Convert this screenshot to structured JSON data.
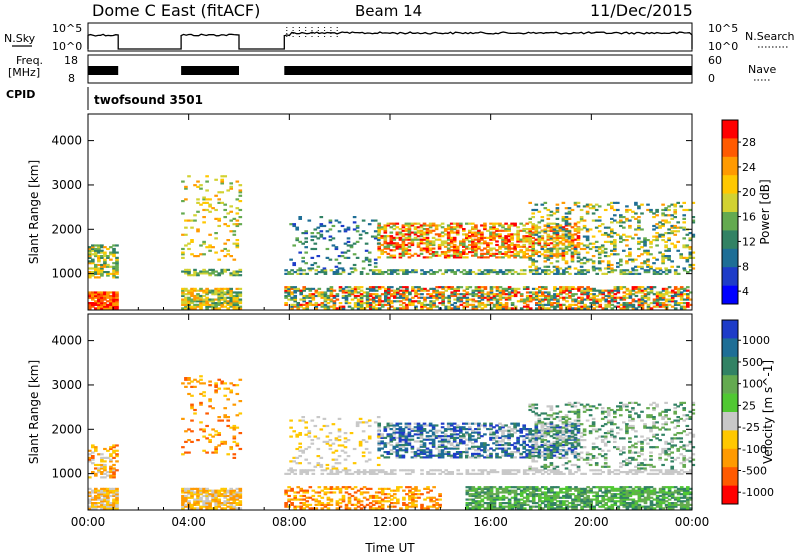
{
  "header": {
    "station": "Dome C East (fitACF)",
    "beam": "Beam 14",
    "date": "11/Dec/2015"
  },
  "strips": {
    "nsky_label": "N.Sky",
    "nsky_ticks": [
      "10^5",
      "10^0"
    ],
    "nsearch_label": "N.Search",
    "nsearch_ticks": [
      "10^5",
      "10^0"
    ],
    "freq_label": "Freq.",
    "freq_unit": "[MHz]",
    "freq_ticks": [
      "18",
      "8"
    ],
    "nave_label": "Nave",
    "nave_ticks": [
      "60",
      "0"
    ],
    "cpid_label": "CPID",
    "cpid_value": "twofsound 3501"
  },
  "chart_data": [
    {
      "type": "heatmap",
      "name": "power-panel",
      "xlabel": "Time UT",
      "ylabel": "Slant Range [km]",
      "x_ticks": [
        "00:00",
        "04:00",
        "08:00",
        "12:00",
        "16:00",
        "20:00",
        "00:00"
      ],
      "x_range_hours": [
        0,
        24
      ],
      "y_ticks": [
        1000,
        2000,
        3000,
        4000
      ],
      "ylim": [
        180,
        4600
      ],
      "colorbar": {
        "label": "Power [dB]",
        "ticks": [
          "28",
          "24",
          "20",
          "16",
          "12",
          "8",
          "4"
        ],
        "colors": [
          "#ff0000",
          "#ff5a00",
          "#ff9a00",
          "#ffc800",
          "#d2d232",
          "#64aa50",
          "#328264",
          "#1e6e96",
          "#1e3cc8",
          "#0000ff"
        ]
      },
      "data_windows_hours": [
        [
          0.0,
          1.2
        ],
        [
          3.7,
          6.0
        ],
        [
          7.8,
          24.0
        ]
      ],
      "regions": [
        {
          "t": [
            0.0,
            1.2
          ],
          "r": [
            200,
            600
          ],
          "c": [
            0,
            1,
            2
          ],
          "d": 0.9
        },
        {
          "t": [
            0.0,
            1.2
          ],
          "r": [
            900,
            1650
          ],
          "c": [
            2,
            3,
            4,
            5,
            6
          ],
          "d": 0.6
        },
        {
          "t": [
            3.7,
            6.0
          ],
          "r": [
            200,
            650
          ],
          "c": [
            2,
            3,
            4,
            5,
            6
          ],
          "d": 0.75
        },
        {
          "t": [
            3.7,
            6.0
          ],
          "r": [
            950,
            1100
          ],
          "c": [
            4,
            5,
            6
          ],
          "d": 0.6
        },
        {
          "t": [
            3.7,
            6.0
          ],
          "r": [
            1300,
            3200
          ],
          "c": [
            2,
            3,
            4,
            5
          ],
          "d": 0.12
        },
        {
          "t": [
            7.8,
            24.0
          ],
          "r": [
            200,
            700
          ],
          "c": [
            0,
            1,
            2,
            3,
            4,
            5,
            6,
            7
          ],
          "d": 0.6
        },
        {
          "t": [
            7.8,
            24.0
          ],
          "r": [
            980,
            1080
          ],
          "c": [
            4,
            5,
            6,
            7
          ],
          "d": 0.5
        },
        {
          "t": [
            11.5,
            19.5
          ],
          "r": [
            1350,
            2150
          ],
          "c": [
            0,
            1,
            2,
            3,
            4,
            5
          ],
          "d": 0.55
        },
        {
          "t": [
            17.5,
            24.0
          ],
          "r": [
            1100,
            2600
          ],
          "c": [
            2,
            3,
            4,
            5,
            6,
            7
          ],
          "d": 0.25
        },
        {
          "t": [
            8.0,
            11.5
          ],
          "r": [
            1100,
            2300
          ],
          "c": [
            5,
            6,
            7,
            8
          ],
          "d": 0.15
        }
      ]
    },
    {
      "type": "heatmap",
      "name": "velocity-panel",
      "xlabel": "Time UT",
      "ylabel": "Slant Range [km]",
      "x_ticks": [
        "00:00",
        "04:00",
        "08:00",
        "12:00",
        "16:00",
        "20:00",
        "00:00"
      ],
      "x_range_hours": [
        0,
        24
      ],
      "y_ticks": [
        1000,
        2000,
        3000,
        4000
      ],
      "ylim": [
        180,
        4600
      ],
      "colorbar": {
        "label": "Velocity [m s^-1]",
        "ticks": [
          "1000",
          "500",
          "100",
          "25",
          "-25",
          "-100",
          "-500",
          "-1000"
        ],
        "colors": [
          "#1e3cc8",
          "#1e6e96",
          "#328264",
          "#64aa50",
          "#50c832",
          "#c8c8c8",
          "#ffc800",
          "#ff9a00",
          "#ff5a00",
          "#ff0000"
        ]
      },
      "data_windows_hours": [
        [
          0.0,
          1.2
        ],
        [
          3.7,
          6.0
        ],
        [
          7.8,
          24.0
        ]
      ],
      "regions": [
        {
          "t": [
            0.0,
            1.2
          ],
          "r": [
            200,
            650
          ],
          "c": [
            5,
            6,
            7
          ],
          "d": 0.85
        },
        {
          "t": [
            0.0,
            1.2
          ],
          "r": [
            900,
            1650
          ],
          "c": [
            5,
            6,
            7,
            8
          ],
          "d": 0.45
        },
        {
          "t": [
            3.7,
            6.0
          ],
          "r": [
            200,
            650
          ],
          "c": [
            6,
            7,
            5
          ],
          "d": 0.8
        },
        {
          "t": [
            3.7,
            6.0
          ],
          "r": [
            1300,
            3200
          ],
          "c": [
            6,
            7,
            8
          ],
          "d": 0.12
        },
        {
          "t": [
            7.8,
            14.0
          ],
          "r": [
            200,
            700
          ],
          "c": [
            6,
            7,
            8
          ],
          "d": 0.4
        },
        {
          "t": [
            15.0,
            24.0
          ],
          "r": [
            200,
            700
          ],
          "c": [
            2,
            3,
            4
          ],
          "d": 0.7
        },
        {
          "t": [
            7.8,
            24.0
          ],
          "r": [
            980,
            1080
          ],
          "c": [
            5
          ],
          "d": 0.55
        },
        {
          "t": [
            11.5,
            19.5
          ],
          "r": [
            1350,
            2150
          ],
          "c": [
            0,
            1,
            2,
            5
          ],
          "d": 0.55
        },
        {
          "t": [
            17.5,
            24.0
          ],
          "r": [
            1100,
            2600
          ],
          "c": [
            2,
            3,
            5
          ],
          "d": 0.25
        },
        {
          "t": [
            8.0,
            11.5
          ],
          "r": [
            1100,
            2300
          ],
          "c": [
            5,
            6
          ],
          "d": 0.15
        }
      ]
    }
  ]
}
